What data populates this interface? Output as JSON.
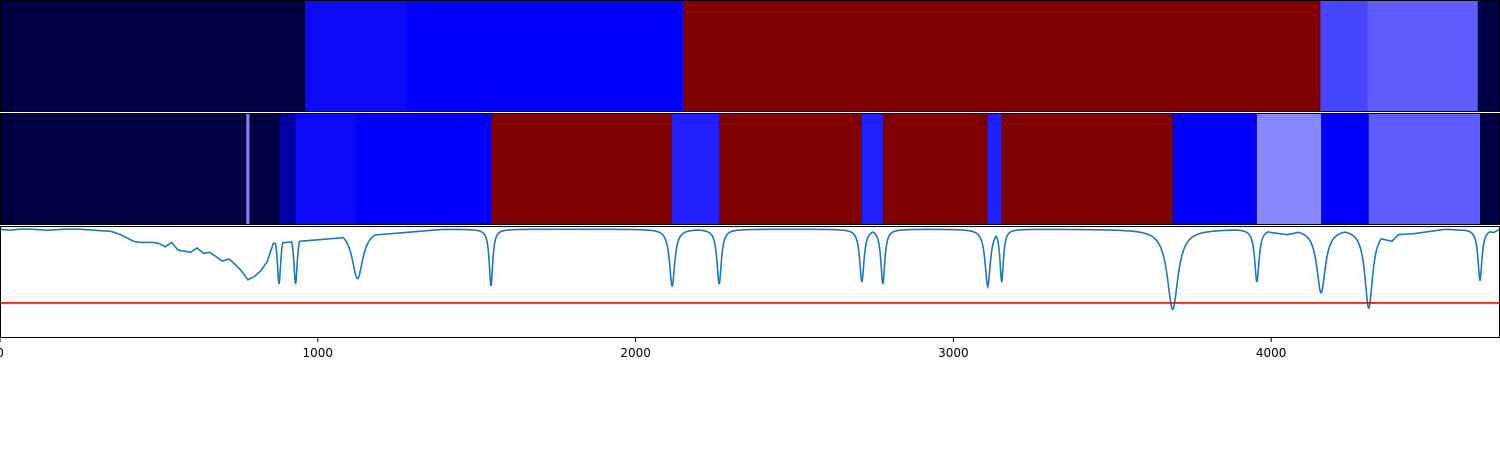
{
  "chart_data": [
    {
      "type": "segment_band",
      "title": "",
      "xlabel": "",
      "ylabel": "",
      "xlim": [
        0,
        4720
      ],
      "segments": [
        {
          "start": 0,
          "end": 960,
          "color": "#000044"
        },
        {
          "start": 960,
          "end": 1280,
          "color": "#0a0af5"
        },
        {
          "start": 1280,
          "end": 2150,
          "color": "#0000ff"
        },
        {
          "start": 2150,
          "end": 4155,
          "color": "#800000"
        },
        {
          "start": 4155,
          "end": 4303,
          "color": "#4646ff"
        },
        {
          "start": 4303,
          "end": 4650,
          "color": "#5e5eff"
        },
        {
          "start": 4650,
          "end": 4720,
          "color": "#000044"
        }
      ]
    },
    {
      "type": "segment_band",
      "title": "",
      "xlabel": "",
      "ylabel": "",
      "xlim": [
        0,
        4720
      ],
      "segments": [
        {
          "start": 0,
          "end": 775,
          "color": "#000044"
        },
        {
          "start": 775,
          "end": 785,
          "color": "#8080ff"
        },
        {
          "start": 785,
          "end": 880,
          "color": "#000044"
        },
        {
          "start": 880,
          "end": 930,
          "color": "#0000a0"
        },
        {
          "start": 930,
          "end": 1120,
          "color": "#0a0af5"
        },
        {
          "start": 1120,
          "end": 1545,
          "color": "#0000ff"
        },
        {
          "start": 1545,
          "end": 2115,
          "color": "#800000"
        },
        {
          "start": 2115,
          "end": 2263,
          "color": "#2020ff"
        },
        {
          "start": 2263,
          "end": 2712,
          "color": "#800000"
        },
        {
          "start": 2712,
          "end": 2778,
          "color": "#2020ff"
        },
        {
          "start": 2778,
          "end": 3108,
          "color": "#800000"
        },
        {
          "start": 3108,
          "end": 3152,
          "color": "#2020ff"
        },
        {
          "start": 3152,
          "end": 3690,
          "color": "#800000"
        },
        {
          "start": 3690,
          "end": 3955,
          "color": "#0000ff"
        },
        {
          "start": 3955,
          "end": 4157,
          "color": "#8888ff"
        },
        {
          "start": 4157,
          "end": 4307,
          "color": "#0000ff"
        },
        {
          "start": 4307,
          "end": 4657,
          "color": "#5e5eff"
        },
        {
          "start": 4657,
          "end": 4720,
          "color": "#000044"
        }
      ]
    },
    {
      "type": "line",
      "title": "",
      "xlabel": "",
      "ylabel": "",
      "xlim": [
        0,
        4720
      ],
      "ylim": [
        0,
        1
      ],
      "xticks": [
        0,
        1000,
        2000,
        3000,
        4000
      ],
      "xtick_labels": [
        "0",
        "1000",
        "2000",
        "3000",
        "4000"
      ],
      "grid": false,
      "line_color": "#1f77b4",
      "baseline": 0.98,
      "x": [
        0,
        30,
        60,
        100,
        150,
        200,
        250,
        300,
        350,
        380,
        400,
        420,
        440,
        460,
        480,
        500,
        520,
        540,
        560,
        580,
        600,
        620,
        640,
        660,
        680,
        700,
        720,
        740,
        760,
        780,
        800,
        820,
        840,
        860,
        1400,
        1600,
        1800,
        2000,
        2200,
        2400,
        2600,
        2900,
        3300,
        3500,
        3680,
        3720,
        3800,
        3900,
        3950,
        4000,
        4050,
        4100,
        4150,
        4200,
        4250,
        4300,
        4350,
        4380,
        4400,
        4450,
        4500,
        4550,
        4600,
        4650,
        4700,
        4720
      ],
      "y": [
        0.98,
        0.97,
        0.98,
        0.98,
        0.97,
        0.98,
        0.98,
        0.97,
        0.96,
        0.93,
        0.9,
        0.87,
        0.86,
        0.86,
        0.86,
        0.85,
        0.82,
        0.86,
        0.79,
        0.78,
        0.77,
        0.81,
        0.76,
        0.77,
        0.73,
        0.69,
        0.71,
        0.66,
        0.6,
        0.52,
        0.55,
        0.6,
        0.68,
        0.85,
        0.98,
        0.98,
        0.98,
        0.98,
        0.98,
        0.98,
        0.98,
        0.98,
        0.98,
        0.98,
        0.98,
        0.94,
        0.97,
        0.98,
        0.98,
        0.95,
        0.93,
        0.96,
        0.98,
        0.98,
        0.96,
        0.97,
        0.89,
        0.87,
        0.93,
        0.94,
        0.96,
        0.98,
        0.97,
        0.98,
        0.95,
        0.98
      ],
      "dips": [
        {
          "x": 878,
          "depth": 0.5,
          "width": 8
        },
        {
          "x": 930,
          "depth": 0.5,
          "width": 8
        },
        {
          "x": 1125,
          "depth": 0.45,
          "width": 25
        },
        {
          "x": 1545,
          "depth": 0.52,
          "width": 8
        },
        {
          "x": 2115,
          "depth": 0.52,
          "width": 12
        },
        {
          "x": 2263,
          "depth": 0.5,
          "width": 10
        },
        {
          "x": 2712,
          "depth": 0.48,
          "width": 10
        },
        {
          "x": 2778,
          "depth": 0.5,
          "width": 9
        },
        {
          "x": 3108,
          "depth": 0.52,
          "width": 12
        },
        {
          "x": 3152,
          "depth": 0.48,
          "width": 8
        },
        {
          "x": 3690,
          "depth": 0.73,
          "width": 25
        },
        {
          "x": 3955,
          "depth": 0.48,
          "width": 10
        },
        {
          "x": 4157,
          "depth": 0.58,
          "width": 20
        },
        {
          "x": 4307,
          "depth": 0.72,
          "width": 18
        },
        {
          "x": 4657,
          "depth": 0.47,
          "width": 9
        }
      ],
      "threshold": {
        "y": 0.31,
        "color": "#ff0000"
      }
    }
  ]
}
